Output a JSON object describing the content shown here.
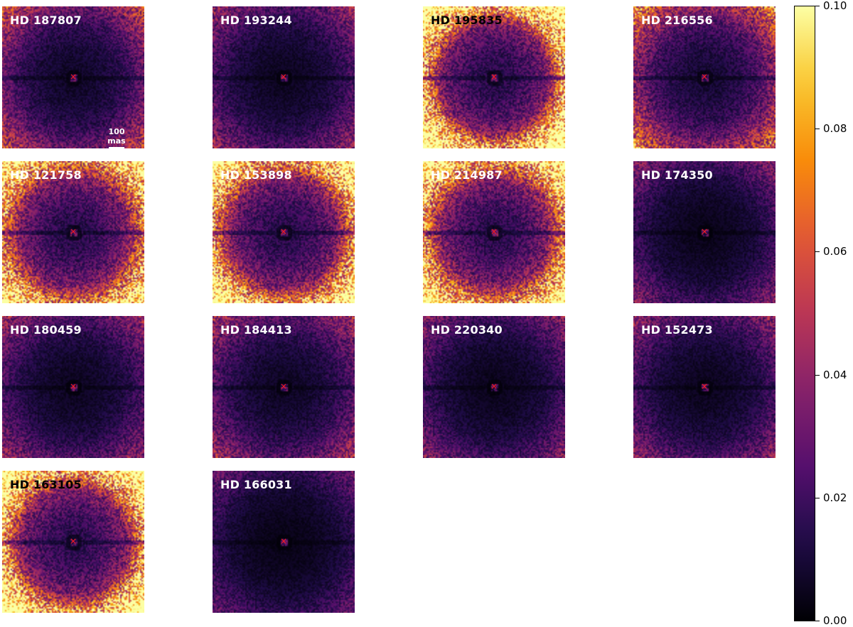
{
  "chart_data": {
    "type": "heatmap",
    "colormap": "inferno",
    "colorbar": {
      "min": 0.0,
      "max": 0.1,
      "ticks": [
        "0.00",
        "0.02",
        "0.04",
        "0.06",
        "0.08",
        "0.10"
      ]
    },
    "scalebar_label": "100 mas",
    "scalebar_panel": "HD 187807",
    "marker": "×",
    "marker_color": "#ff1a1a",
    "panels": [
      {
        "name": "HD 187807",
        "level": 0.02,
        "halo": 0.01,
        "label_color": "#ffffff"
      },
      {
        "name": "HD 193244",
        "level": 0.016,
        "halo": 0.006,
        "label_color": "#ffffff"
      },
      {
        "name": "HD 195835",
        "level": 0.04,
        "halo": 0.06,
        "label_color": "#000000"
      },
      {
        "name": "HD 216556",
        "level": 0.026,
        "halo": 0.012,
        "label_color": "#ffffff"
      },
      {
        "name": "HD 121758",
        "level": 0.04,
        "halo": 0.035,
        "label_color": "#ffffff"
      },
      {
        "name": "HD 153898",
        "level": 0.04,
        "halo": 0.045,
        "label_color": "#ffffff"
      },
      {
        "name": "HD 214987",
        "level": 0.042,
        "halo": 0.04,
        "label_color": "#ffffff"
      },
      {
        "name": "HD 174350",
        "level": 0.013,
        "halo": 0.007,
        "label_color": "#ffffff"
      },
      {
        "name": "HD 180459",
        "level": 0.016,
        "halo": 0.006,
        "label_color": "#ffffff"
      },
      {
        "name": "HD 184413",
        "level": 0.018,
        "halo": 0.006,
        "label_color": "#ffffff"
      },
      {
        "name": "HD 220340",
        "level": 0.014,
        "halo": 0.006,
        "label_color": "#ffffff"
      },
      {
        "name": "HD 152473",
        "level": 0.015,
        "halo": 0.006,
        "label_color": "#ffffff"
      },
      {
        "name": "HD 163105",
        "level": 0.042,
        "halo": 0.055,
        "label_color": "#000000"
      },
      {
        "name": "HD 166031",
        "level": 0.011,
        "halo": 0.005,
        "label_color": "#ffffff"
      }
    ]
  }
}
